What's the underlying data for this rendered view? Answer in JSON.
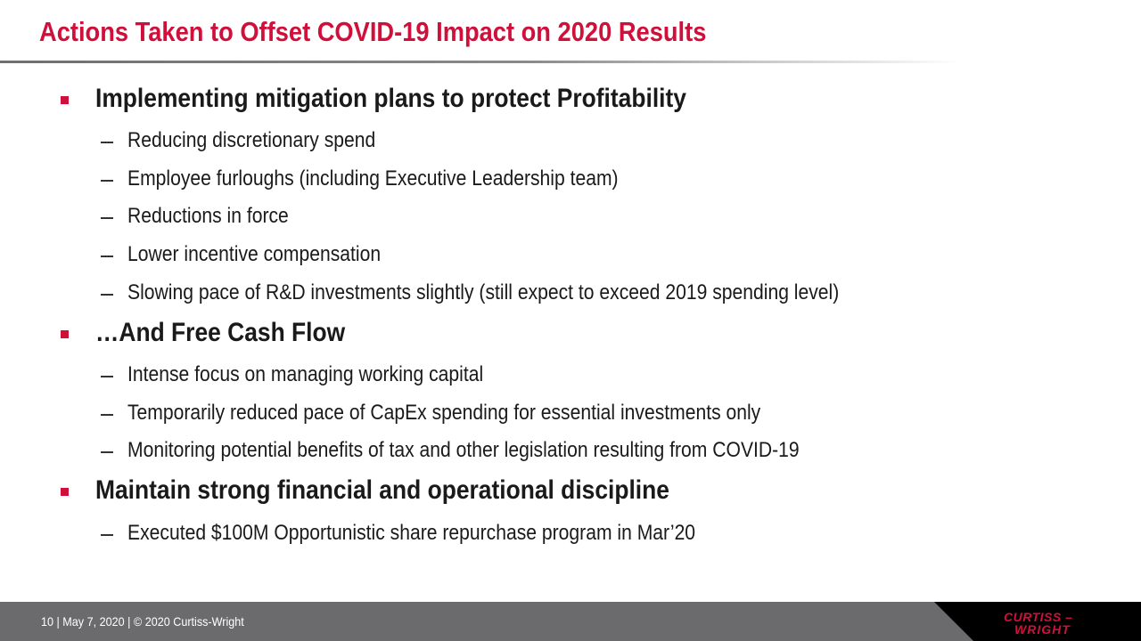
{
  "title": "Actions Taken to Offset COVID-19 Impact on 2020 Results",
  "sections": [
    {
      "heading": "Implementing mitigation plans to protect Profitability",
      "items": [
        "Reducing discretionary spend",
        "Employee furloughs (including Executive Leadership team)",
        "Reductions in force",
        "Lower incentive compensation",
        "Slowing pace of R&D investments slightly (still expect to exceed 2019 spending level)"
      ]
    },
    {
      "heading": "…And Free Cash Flow",
      "items": [
        "Intense focus on managing working capital",
        "Temporarily reduced pace of CapEx spending for essential investments only",
        "Monitoring potential benefits of tax and other legislation resulting from COVID-19"
      ]
    },
    {
      "heading": "Maintain strong financial and operational discipline",
      "items": [
        "Executed $100M Opportunistic share repurchase program in Mar’20"
      ]
    }
  ],
  "footer": {
    "text": "10 | May 7, 2020 | © 2020 Curtiss-Wright"
  },
  "logo": {
    "line1": "CURTISS –",
    "line2": "WRIGHT",
    "color": "#d0103a"
  },
  "colors": {
    "accent": "#d0103a",
    "footer_bg": "#6b6b6d"
  }
}
